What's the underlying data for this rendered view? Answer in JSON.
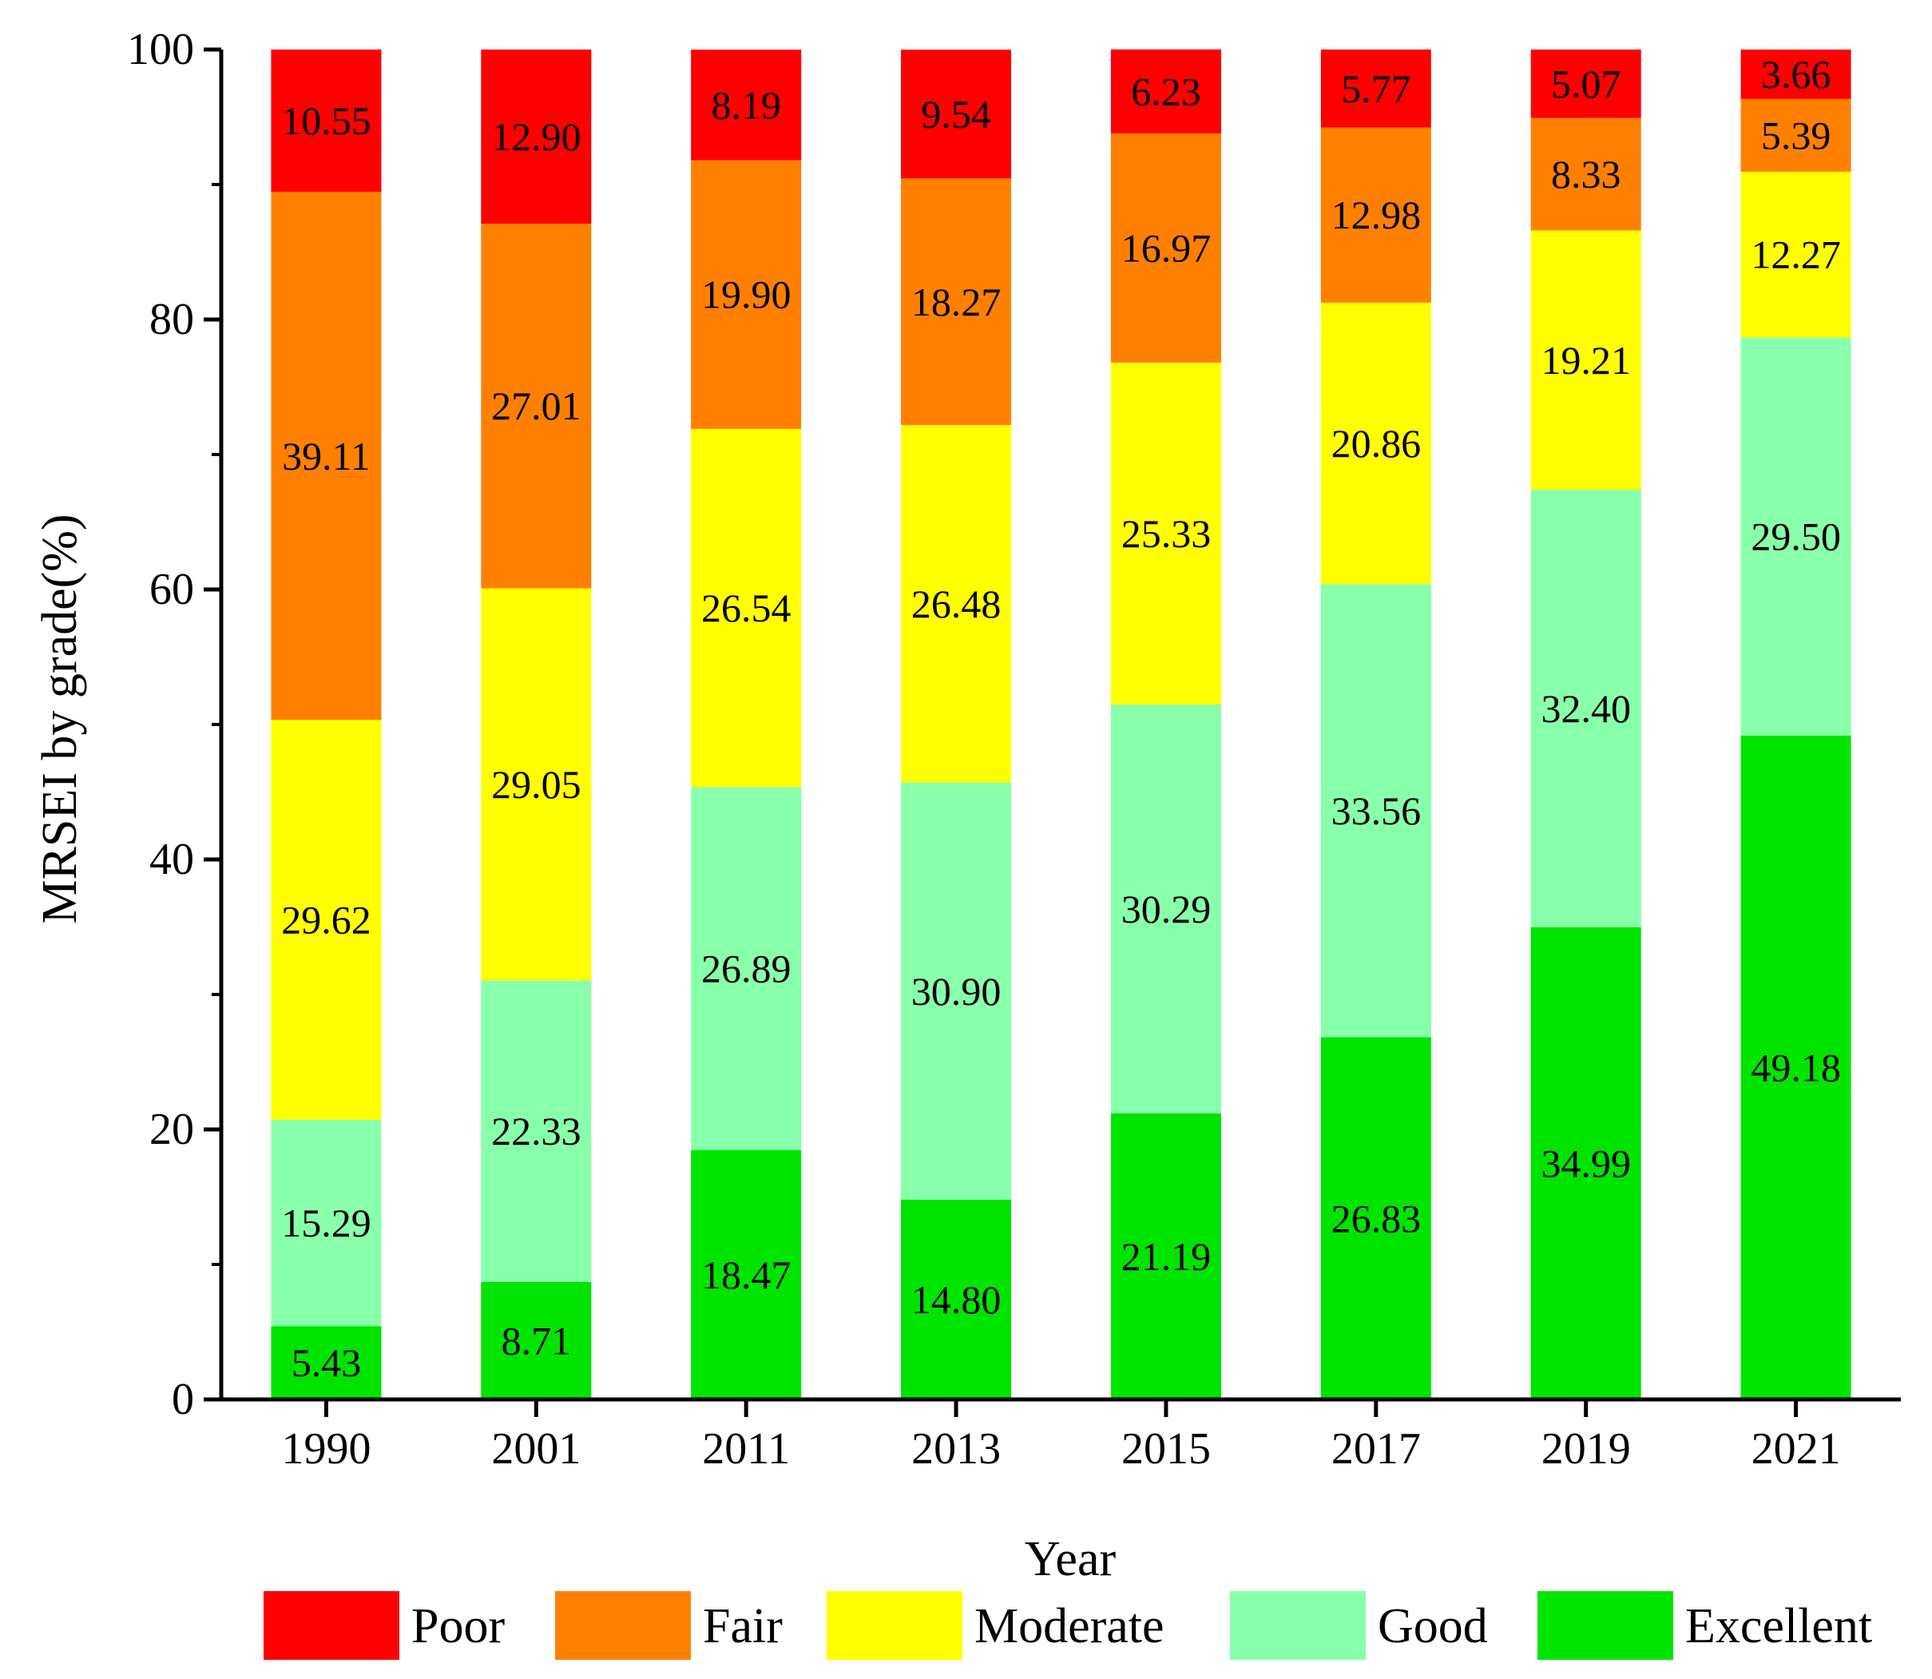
{
  "chart_data": {
    "type": "bar",
    "stacked": true,
    "xlabel": "Year",
    "ylabel": "MRSEI by grade(%)",
    "ylim": [
      0,
      100
    ],
    "yticks": [
      "0",
      "20",
      "40",
      "60",
      "80",
      "100"
    ],
    "categories": [
      "1990",
      "2001",
      "2011",
      "2013",
      "2015",
      "2017",
      "2019",
      "2021"
    ],
    "series": [
      {
        "name": "Excellent",
        "color": "#00e400",
        "values": [
          5.43,
          8.71,
          18.47,
          14.8,
          21.19,
          26.83,
          34.99,
          49.18
        ],
        "labels": [
          "5.43",
          "8.71",
          "18.47",
          "14.80",
          "21.19",
          "26.83",
          "34.99",
          "49.18"
        ]
      },
      {
        "name": "Good",
        "color": "#88ffaa",
        "values": [
          15.29,
          22.33,
          26.89,
          30.9,
          30.29,
          33.56,
          32.4,
          29.5
        ],
        "labels": [
          "15.29",
          "22.33",
          "26.89",
          "30.90",
          "30.29",
          "33.56",
          "32.40",
          "29.50"
        ]
      },
      {
        "name": "Moderate",
        "color": "#ffff00",
        "values": [
          29.62,
          29.05,
          26.54,
          26.48,
          25.33,
          20.86,
          19.21,
          12.27
        ],
        "labels": [
          "29.62",
          "29.05",
          "26.54",
          "26.48",
          "25.33",
          "20.86",
          "19.21",
          "12.27"
        ]
      },
      {
        "name": "Fair",
        "color": "#ff8000",
        "values": [
          39.11,
          27.01,
          19.9,
          18.27,
          16.97,
          12.98,
          8.33,
          5.39
        ],
        "labels": [
          "39.11",
          "27.01",
          "19.90",
          "18.27",
          "16.97",
          "12.98",
          "8.33",
          "5.39"
        ]
      },
      {
        "name": "Poor",
        "color": "#ff0000",
        "values": [
          10.55,
          12.9,
          8.19,
          9.54,
          6.23,
          5.77,
          5.07,
          3.66
        ],
        "labels": [
          "10.55",
          "12.90",
          "8.19",
          "9.54",
          "6.23",
          "5.77",
          "5.07",
          "3.66"
        ]
      }
    ],
    "legend": [
      "Poor",
      "Fair",
      "Moderate",
      "Good",
      "Excellent"
    ],
    "legend_position": "bottom"
  }
}
